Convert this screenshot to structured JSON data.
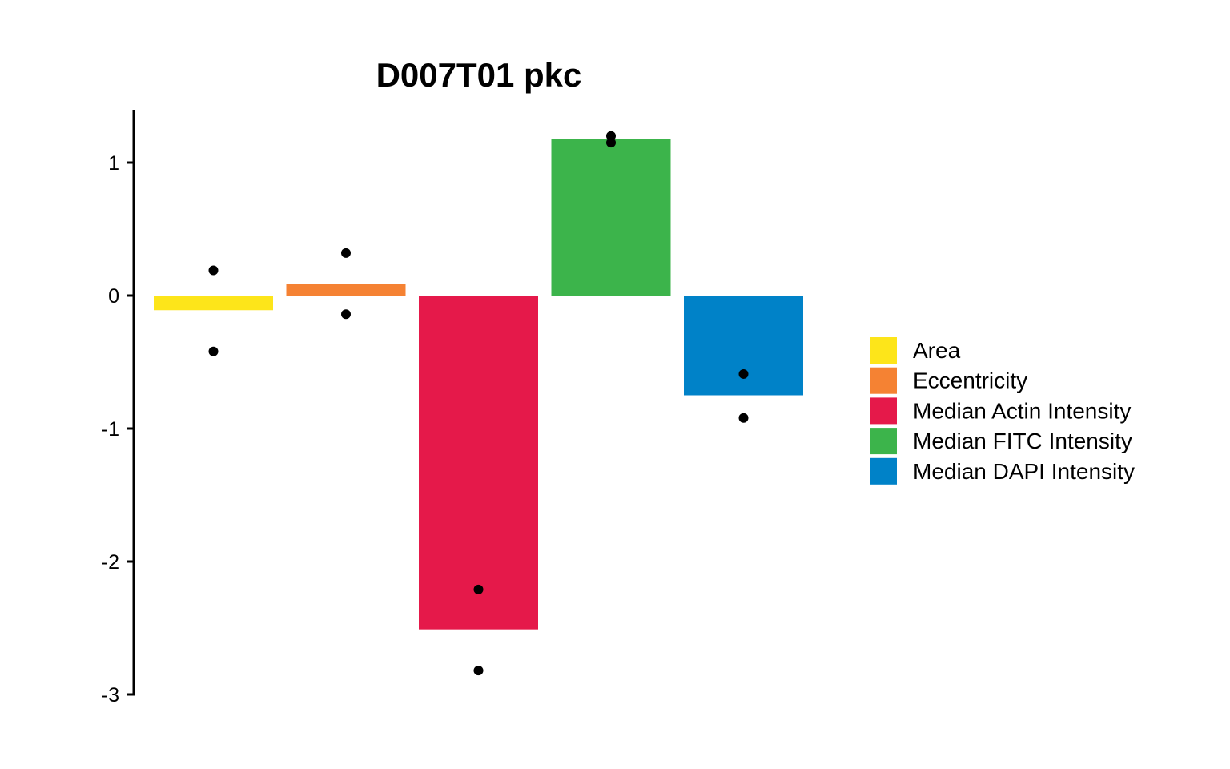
{
  "chart_data": {
    "type": "bar",
    "title": "D007T01 pkc",
    "xlabel": "",
    "ylabel": "",
    "ylim": [
      -3,
      1.4
    ],
    "yticks": [
      1,
      0,
      -1,
      -2,
      -3
    ],
    "ytick_labels": [
      "1",
      "0",
      "-1",
      "-2",
      "-3"
    ],
    "grid": false,
    "legend_position": "right",
    "categories": [
      "Area",
      "Eccentricity",
      "Median Actin Intensity",
      "Median FITC Intensity",
      "Median DAPI Intensity"
    ],
    "values": [
      -0.11,
      0.09,
      -2.51,
      1.18,
      -0.75
    ],
    "colors": [
      "#FDE51A",
      "#F58233",
      "#E5194A",
      "#3CB44B",
      "#0082C8"
    ],
    "points": [
      [
        0.19,
        -0.42
      ],
      [
        0.32,
        -0.14
      ],
      [
        -2.21,
        -2.82
      ],
      [
        1.2,
        1.15
      ],
      [
        -0.59,
        -0.92
      ]
    ]
  }
}
